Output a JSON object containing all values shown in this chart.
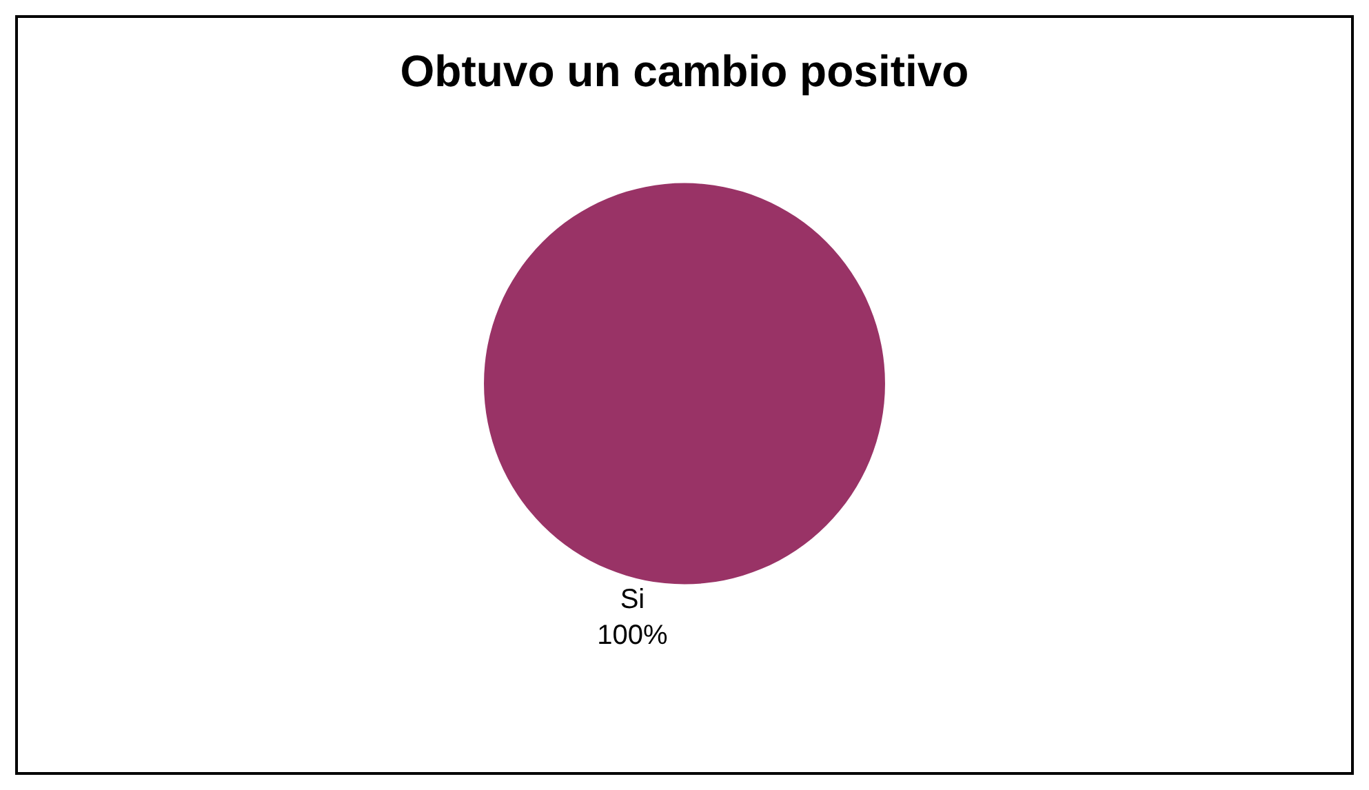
{
  "chart_data": {
    "type": "pie",
    "title": "Obtuvo un cambio positivo",
    "categories": [
      "Si"
    ],
    "values": [
      100
    ],
    "value_labels": [
      "100%"
    ],
    "colors": [
      "#993366"
    ],
    "legend": false
  }
}
